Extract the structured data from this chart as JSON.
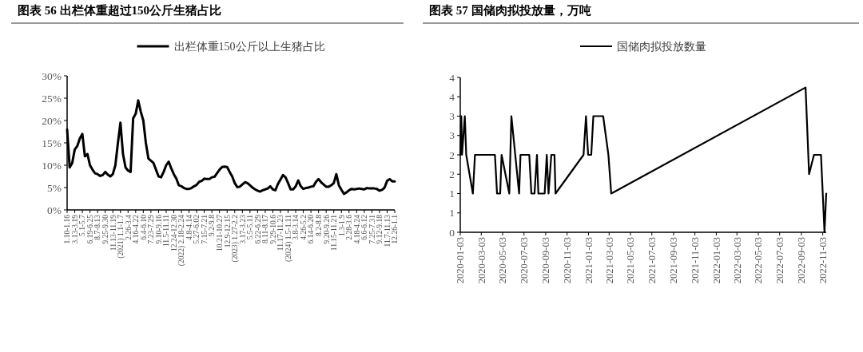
{
  "chart_data": [
    {
      "type": "line",
      "title": "图表 56  出栏体重超过150公斤生猪占比",
      "legend": "top",
      "categories": [
        "1.10-1.16",
        null,
        null,
        "3.13-3.19",
        null,
        null,
        "5.1-5.7",
        null,
        null,
        "6.19-6.25",
        null,
        null,
        "8.7-8.13",
        null,
        null,
        "9.25-9.30",
        null,
        null,
        "11.13-11.19",
        null,
        null,
        "(2021) 1.1-1.7",
        null,
        null,
        "2.26-3.4",
        null,
        null,
        "4.16-4.22",
        null,
        null,
        "6.4-6.10",
        null,
        null,
        "7.23-7.29",
        null,
        null,
        "9.10-9.16",
        null,
        null,
        "11.5-11.11",
        null,
        null,
        "12.24-12.30",
        null,
        null,
        "(2022) 2.18-2.24",
        null,
        null,
        "4.8-4.14",
        null,
        null,
        "5.27-6.02",
        null,
        null,
        "7.15-7.21",
        null,
        null,
        "9.2-9.8",
        null,
        null,
        "10.21-10.27",
        null,
        null,
        "12.9-12.15",
        null,
        null,
        "(2023) 1.27-2.2",
        null,
        null,
        "3.17-3.23",
        null,
        null,
        "5.5-5.11",
        null,
        null,
        "6.22-6.29",
        null,
        null,
        "8.11-8.17",
        null,
        null,
        "9.29-10.6",
        null,
        null,
        "11.17-11.23",
        null,
        null,
        "(2024) 1.5-1.11",
        null,
        null,
        "3.8-3.14",
        null,
        null,
        "4.26-5.2",
        null,
        null,
        "6.14-6.20",
        null,
        null,
        "8.2-8.8",
        null,
        null,
        "9.20-9.26",
        null,
        null,
        "11.15-11.21",
        null,
        null,
        "1.3-1.9",
        null,
        null,
        "2.28-3.6",
        null,
        null,
        "4.18-4.24",
        null,
        null,
        "6.6-6.12",
        null,
        null,
        "7.25-7.31",
        null,
        null,
        "9.12-9.18",
        null,
        null,
        "11.7-11.13",
        null,
        null,
        "12.26-1.1"
      ],
      "series": [
        {
          "name": "出栏体重150公斤以上生猪占比",
          "color": "#000000",
          "values": [
            18,
            9.5,
            10.5,
            13.5,
            14.3,
            16,
            17,
            12,
            12.5,
            10,
            9,
            8.2,
            8,
            7.6,
            7.8,
            8.5,
            7.9,
            7.5,
            8,
            10,
            15,
            19.5,
            12.5,
            9.5,
            8.8,
            8.5,
            20.5,
            21.5,
            24.5,
            22,
            20,
            15,
            11.5,
            11,
            10.5,
            9,
            7.5,
            7.3,
            8.5,
            10,
            10.8,
            9.3,
            8,
            7,
            5.5,
            5.3,
            4.9,
            4.7,
            4.7,
            4.9,
            5.3,
            5.6,
            6.3,
            6.5,
            7,
            6.9,
            6.9,
            7.3,
            7.4,
            8.2,
            9,
            9.6,
            9.7,
            9.6,
            8.5,
            7.5,
            6,
            5.1,
            5.2,
            5.7,
            6.2,
            6,
            5.5,
            5,
            4.6,
            4.3,
            4.1,
            4.4,
            4.6,
            4.8,
            5.3,
            4.6,
            4.4,
            5.8,
            6.8,
            7.8,
            7.3,
            6,
            4.6,
            4.6,
            5.3,
            6.6,
            5.3,
            4.7,
            4.9,
            5,
            5.2,
            5.3,
            6.3,
            6.9,
            6.2,
            5.7,
            5.2,
            5.2,
            5.5,
            6,
            8,
            5.5,
            4.5,
            3.6,
            3.9,
            4.4,
            4.7,
            4.6,
            4.7,
            4.8,
            4.7,
            4.6,
            4.9,
            4.8,
            4.8,
            4.8,
            4.7,
            4.3,
            4.5,
            5,
            6.5,
            6.9,
            6.4,
            6.4
          ]
        }
      ],
      "ylim": [
        0,
        30
      ],
      "yticks": [
        {
          "value": 0,
          "label": "0%"
        },
        {
          "value": 5,
          "label": "5%"
        },
        {
          "value": 10,
          "label": "10%"
        },
        {
          "value": 15,
          "label": "15%"
        },
        {
          "value": 20,
          "label": "20%"
        },
        {
          "value": 25,
          "label": "25%"
        },
        {
          "value": 30,
          "label": "30%"
        }
      ]
    },
    {
      "type": "line",
      "title": "图表 57 国储肉拟投放量，万吨",
      "legend": "top",
      "x": [
        "2020-01-03",
        "2020-01-06",
        "2020-01-08",
        "2020-01-16",
        "2020-01-20",
        "2020-02-08",
        "2020-02-14",
        "2020-04-11",
        "2020-04-17",
        "2020-04-26",
        "2020-04-30",
        "2020-05-22",
        "2020-05-28",
        "2020-06-19",
        "2020-06-23",
        "2020-07-18",
        "2020-07-24",
        "2020-08-02",
        "2020-08-09",
        "2020-08-13",
        "2020-08-31",
        "2020-09-06",
        "2020-09-11",
        "2020-09-19",
        "2020-09-28",
        "2020-10-01",
        "2020-12-20",
        "2020-12-27",
        "2021-01-02",
        "2021-01-11",
        "2021-01-17",
        "2021-02-14",
        "2021-03-01",
        "2021-03-09",
        "2022-09-15",
        "2022-09-25",
        "2022-10-09",
        "2022-10-29",
        "2022-11-08",
        "2022-11-13"
      ],
      "series": [
        {
          "name": "国储肉拟投放数量",
          "color": "#000000",
          "values": [
            2,
            3,
            2,
            3,
            2,
            1,
            2,
            2,
            1,
            1,
            2,
            1,
            3,
            1,
            2,
            2,
            1,
            1,
            2,
            1,
            1,
            2,
            1,
            2,
            2,
            1,
            2,
            3,
            2,
            2,
            3,
            3,
            2,
            1,
            3.74,
            1.5,
            2,
            2,
            0,
            1
          ]
        }
      ],
      "xlim": [
        "2020-01-03",
        "2022-11-13"
      ],
      "xticks": [
        "2020-01-03",
        "2020-03-03",
        "2020-05-03",
        "2020-07-03",
        "2020-09-03",
        "2020-11-03",
        "2021-01-03",
        "2021-03-03",
        "2021-05-03",
        "2021-07-03",
        "2021-09-03",
        "2021-11-03",
        "2022-01-03",
        "2022-03-03",
        "2022-05-03",
        "2022-07-03",
        "2022-09-03",
        "2022-11-03"
      ],
      "ylim": [
        0,
        4
      ],
      "yticks": [
        0,
        {
          "value": 0.5,
          "label": "1"
        },
        1,
        {
          "value": 1.5,
          "label": "2"
        },
        2,
        {
          "value": 2.5,
          "label": "3"
        },
        3,
        {
          "value": 3.5,
          "label": "4"
        },
        4
      ]
    }
  ]
}
